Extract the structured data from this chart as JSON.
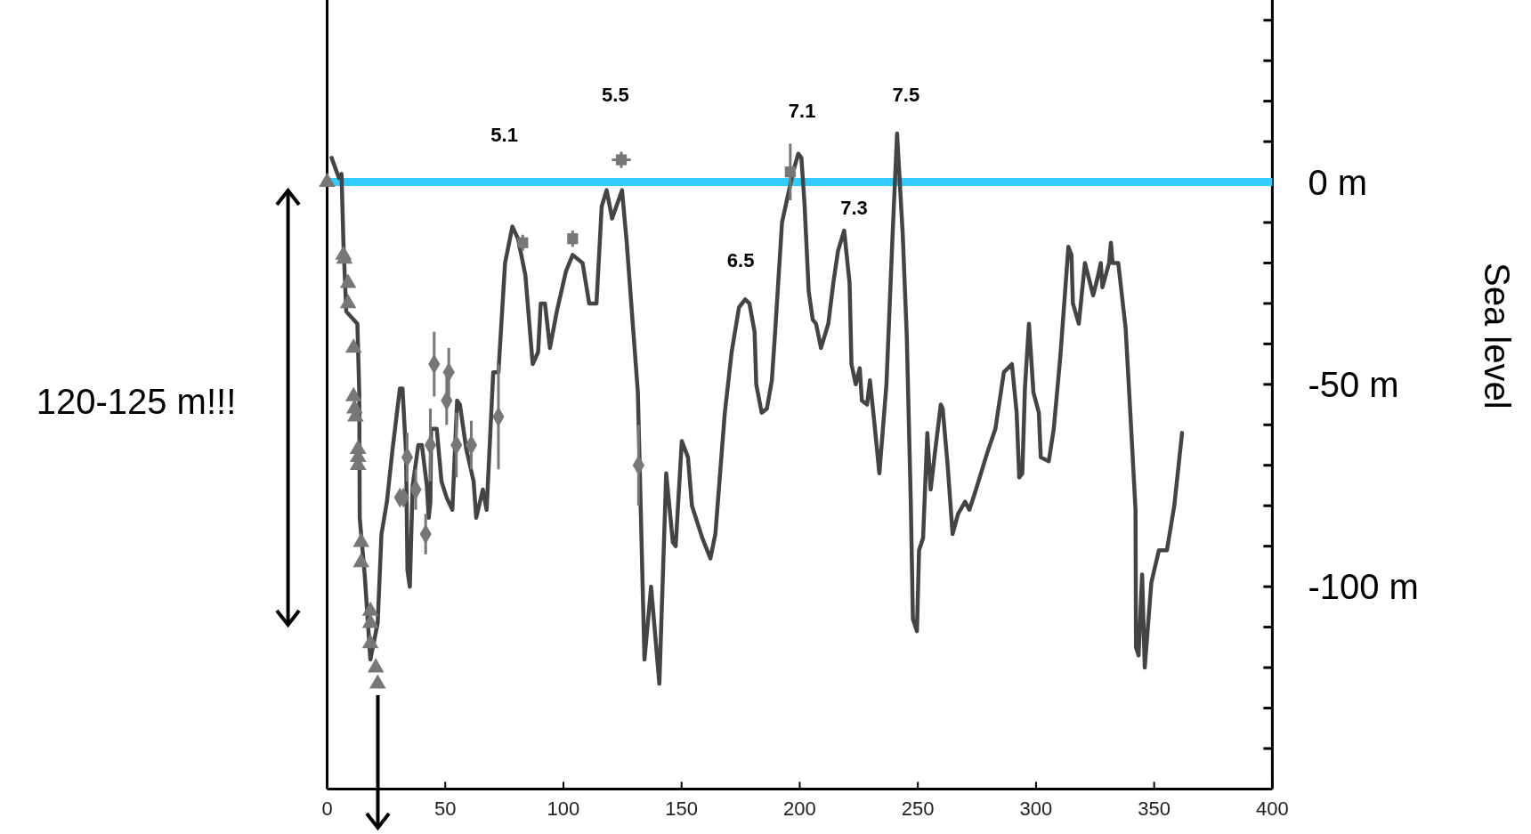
{
  "chart_data": {
    "type": "line",
    "ylabel": "Sea level",
    "xlim": [
      0,
      400
    ],
    "xticks": [
      0,
      50,
      100,
      150,
      200,
      250,
      300,
      350,
      400
    ],
    "ylim": [
      -150,
      45
    ],
    "yticks": [
      {
        "value": -140,
        "label": null
      },
      {
        "value": -130,
        "label": null
      },
      {
        "value": -120,
        "label": null
      },
      {
        "value": -110,
        "label": null
      },
      {
        "value": -100,
        "label": "-100 m"
      },
      {
        "value": -90,
        "label": null
      },
      {
        "value": -80,
        "label": null
      },
      {
        "value": -70,
        "label": null
      },
      {
        "value": -60,
        "label": null
      },
      {
        "value": -50,
        "label": "-50 m"
      },
      {
        "value": -40,
        "label": null
      },
      {
        "value": -30,
        "label": null
      },
      {
        "value": -20,
        "label": null
      },
      {
        "value": -10,
        "label": null
      },
      {
        "value": 0,
        "label": "0 m"
      },
      {
        "value": 10,
        "label": null
      },
      {
        "value": 20,
        "label": null
      },
      {
        "value": 30,
        "label": null
      },
      {
        "value": 40,
        "label": null
      }
    ],
    "ref_lines": [
      {
        "axis": "y",
        "value": 0,
        "color": "#33ccff"
      }
    ],
    "annotations": [
      "5.1",
      "5.5",
      "6.5",
      "7.1",
      "7.3",
      "7.5",
      "120-125 m!!!"
    ],
    "series": [
      {
        "color": "#444444",
        "marker": "none",
        "x": [
          1.9,
          5,
          6.1,
          6.9,
          8.1,
          12.8,
          13.6,
          13.8,
          15.9,
          18.3,
          21.4,
          23,
          25.3,
          27.7,
          30.8,
          31.9,
          33.4,
          34,
          35,
          36.2,
          38.6,
          40.1,
          42.2,
          43,
          43.7,
          44,
          46.4,
          48.4,
          50.6,
          53,
          55,
          56.2,
          58.9,
          62,
          63.1,
          65.9,
          67.5,
          70.3,
          72.5,
          75.3,
          78.4,
          80.8,
          83.9,
          87,
          89.3,
          90.4,
          92.2,
          94.3,
          97.2,
          101.1,
          103.9,
          108.1,
          110.9,
          114,
          116.2,
          118.3,
          120.6,
          124.8,
          126.8,
          131.5,
          134.3,
          137.1,
          140.6,
          143.5,
          146.3,
          147.5,
          150.1,
          152.7,
          154.4,
          158.8,
          162.2,
          164.3,
          168.3,
          171.2,
          174.3,
          176.9,
          178.7,
          180.9,
          181.6,
          183.9,
          186.1,
          188.2,
          189.6,
          192.5,
          195.1,
          197.2,
          199.4,
          200.7,
          202,
          203.8,
          205.5,
          206.9,
          209,
          212.1,
          214.2,
          216.2,
          218.8,
          221.1,
          221.9,
          223.7,
          225.4,
          226.3,
          228.5,
          229.7,
          231.5,
          233.7,
          236.7,
          239.3,
          241.2,
          243.6,
          245.3,
          247,
          247.9,
          249.6,
          250.5,
          252.2,
          254,
          255.4,
          257.4,
          259.7,
          260.5,
          262.6,
          264.7,
          267,
          270,
          271.8,
          274.6,
          279.3,
          282.8,
          286.4,
          289.8,
          291.8,
          292.9,
          294.2,
          295.3,
          297,
          298.9,
          301.2,
          302,
          305.4,
          307.5,
          310.3,
          313.7,
          315,
          315.6,
          318.1,
          320.7,
          324.2,
          325.9,
          327.4,
          328.1,
          330.9,
          331.7,
          332.4,
          334.8,
          337.9,
          339.9,
          342.1,
          342.3,
          343.4,
          344.9,
          346,
          348.8,
          352,
          355.4,
          358.5,
          361.8
        ],
        "values": [
          6,
          1,
          2,
          -15,
          -32,
          -35,
          -52,
          -83,
          -97,
          -118,
          -109,
          -87,
          -79,
          -66,
          -51,
          -51,
          -67,
          -96,
          -100,
          -75,
          -65,
          -65,
          -75,
          -83,
          -79,
          -61,
          -61,
          -74,
          -78,
          -81,
          -54,
          -55,
          -66,
          -74,
          -83,
          -76,
          -81,
          -47,
          -47,
          -20,
          -11,
          -14,
          -23,
          -45,
          -42,
          -30,
          -30,
          -41,
          -32,
          -22,
          -18,
          -20,
          -30,
          -30,
          -6,
          -2,
          -9,
          -2,
          -15,
          -52,
          -118,
          -100,
          -124,
          -72,
          -89,
          -90,
          -64,
          -68,
          -80,
          -88,
          -93,
          -87,
          -57,
          -42,
          -31,
          -29,
          -30,
          -37,
          -50,
          -57,
          -56,
          -49,
          -37,
          -10,
          -3,
          2.5,
          7,
          6,
          -5,
          -27,
          -34,
          -35,
          -41,
          -35,
          -25,
          -17,
          -12,
          -25,
          -45,
          -50,
          -46,
          -54,
          -55,
          -49,
          -59,
          -72,
          -50,
          -13,
          12,
          -13,
          -38,
          -79,
          -108,
          -111,
          -91,
          -88,
          -62,
          -76,
          -66,
          -55,
          -56,
          -70,
          -87,
          -82,
          -79,
          -81,
          -76,
          -67,
          -61,
          -47,
          -45,
          -57,
          -73,
          -72,
          -51,
          -35,
          -52,
          -57,
          -68,
          -69,
          -61,
          -43,
          -16,
          -18,
          -30,
          -35,
          -20,
          -28,
          -24,
          -20,
          -26,
          -20,
          -15,
          -20,
          -20,
          -36,
          -57,
          -81,
          -115,
          -117,
          -97,
          -120,
          -99,
          -91,
          -91,
          -80,
          -62
        ]
      },
      {
        "type": "scatter",
        "color": "#777777",
        "marker": "triangle",
        "x": [
          0,
          6.9,
          7.3,
          8.9,
          8.9,
          11.2,
          11.2,
          11.6,
          12,
          13.1,
          13.1,
          13.1,
          14.4,
          14.4,
          18.3,
          18.3,
          18.3,
          20.6,
          21.4
        ],
        "values": [
          0,
          -18,
          -19,
          -25,
          -30,
          -41,
          -53,
          -56,
          -58,
          -66,
          -68,
          -70,
          -89,
          -94,
          -106,
          -109,
          -114,
          -120,
          -124
        ]
      },
      {
        "type": "scatter",
        "color": "#777777",
        "marker": "diamond",
        "x": [
          30.8,
          32.3,
          33.9,
          37.5,
          41.7,
          43.7,
          45.3,
          50.6,
          51.5,
          54.7,
          61,
          72.5,
          131.8
        ],
        "values": [
          -78,
          -78,
          -68,
          -76,
          -87,
          -65,
          -45,
          -54,
          -47,
          -65,
          -65,
          -58,
          -70
        ],
        "errors": [
          null,
          null,
          6,
          5,
          5,
          9,
          8,
          6,
          6,
          8,
          6,
          13,
          10
        ]
      },
      {
        "type": "scatter",
        "color": "#777777",
        "marker": "square",
        "x": [
          82.8,
          103.9,
          124.5,
          196
        ],
        "values": [
          -15,
          -14,
          5.5,
          2.5
        ],
        "errors": [
          2,
          2,
          2,
          7
        ],
        "xerrors": [
          null,
          null,
          4,
          null
        ]
      }
    ]
  }
}
